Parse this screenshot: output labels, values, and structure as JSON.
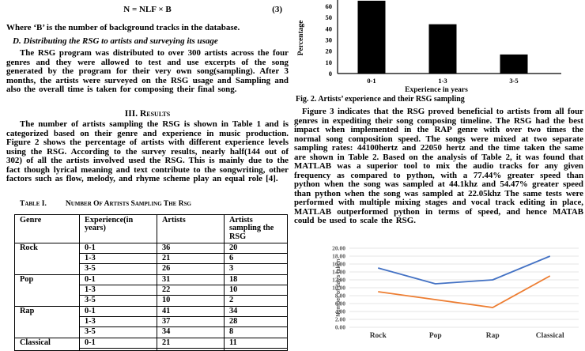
{
  "page": {
    "equation": {
      "formula": "N = NLF × B",
      "number": "(3)"
    },
    "left": {
      "where_line": "Where ‘B’ is the number of background tracks in the database.",
      "section_d_heading": "D. Distributing the RSG to artists and surveying its usage",
      "para_distribution": "The RSG program was distributed to over 300 artists across the four genres and they were allowed to test and use excerpts of the song generated by the program for their very own song(sampling). After 3 months, the artists were surveyed on the RSG usage and Sampling and also the overall time is taken for composing their final song.",
      "results_heading": "III. Results",
      "para_results": "The number of artists sampling the RSG is shown in Table 1 and is categorized based on their genre and experience in music production. Figure 2 shows the percentage of artists with different experience levels using the RSG. According to the survey results, nearly half(144 out of 302)  of all the artists involved used the RSG. This is mainly due to the fact though lyrical meaning and text contribute to the songwriting, other factors such as flow, melody, and rhyme scheme play an equal role [4].",
      "table": {
        "caption_label": "Table I.",
        "caption_title": "Number Of Artists Sampling The  Rsg",
        "headers": [
          "Genre",
          "Experience(in years)",
          "Artists",
          "Artists sampling the RSG"
        ],
        "groups": [
          {
            "genre": "Rock",
            "rows": [
              [
                "0-1",
                "36",
                "20"
              ],
              [
                "1-3",
                "21",
                "6"
              ],
              [
                "3-5",
                "26",
                "3"
              ]
            ]
          },
          {
            "genre": "Pop",
            "rows": [
              [
                "0-1",
                "31",
                "18"
              ],
              [
                "1-3",
                "22",
                "10"
              ],
              [
                "3-5",
                "10",
                "2"
              ]
            ]
          },
          {
            "genre": "Rap",
            "rows": [
              [
                "0-1",
                "41",
                "34"
              ],
              [
                "1-3",
                "37",
                "28"
              ],
              [
                "3-5",
                "34",
                "8"
              ]
            ]
          },
          {
            "genre": "Classical",
            "rows": [
              [
                "0-1",
                "21",
                "11"
              ],
              [
                "",
                "",
                ""
              ]
            ]
          }
        ]
      }
    },
    "right": {
      "fig2_caption": "Fig. 2. Artists’ experience and their RSG sampling",
      "para_figure3": "Figure 3 indicates that the RSG proved beneficial to artists from all four genres in expediting their song composing timeline. The RSG had the best impact when implemented in the RAP genre with over two times the normal song composition speed. The songs were mixed at two separate sampling rates: 44100hertz and 22050 hertz and the time taken the same are shown in Table 2. Based on the analysis of Table 2, it was found that MATLAB was a superior tool to mix the audio tracks for any given frequency as compared to python, with a 77.44% greater speed than python when the song was sampled at 44.1khz and 54.47% greater speed than python when the song was sampled at 22.05khz The same tests were performed with multiple mixing stages and vocal track editing in place, MATLAB outperformed python in terms of speed, and hence MATAB could be used to scale the RSG."
    }
  },
  "chart_data": [
    {
      "id": "fig2",
      "type": "bar",
      "categories": [
        "0-1",
        "1-3",
        "3-5"
      ],
      "values": [
        65,
        44,
        17
      ],
      "xlabel": "Experience  in years",
      "ylabel": "Percentage",
      "ylim": [
        0,
        65
      ],
      "yticks": [
        0,
        10,
        20,
        30,
        40,
        50,
        60
      ],
      "bar_color": "#000000",
      "grid": false,
      "note_visible_caption": "Fig. 2. Artists’ experience and their RSG sampling"
    },
    {
      "id": "fig3",
      "type": "line",
      "categories": [
        "Rock",
        "Pop",
        "Rap",
        "Classical"
      ],
      "series": [
        {
          "name": "series-blue",
          "color": "#4472C4",
          "values": [
            15,
            11,
            12,
            18
          ]
        },
        {
          "name": "series-orange",
          "color": "#ED7D31",
          "values": [
            9,
            7,
            5,
            13
          ]
        }
      ],
      "ylabel": "Number of days taken",
      "ylim": [
        0,
        20
      ],
      "ytick_step": 2,
      "grid": true,
      "gridline_color": "#DCDCDC"
    }
  ]
}
